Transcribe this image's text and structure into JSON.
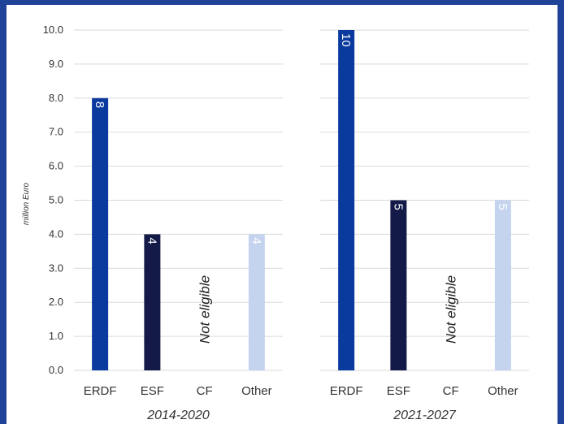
{
  "chart_data": {
    "type": "bar",
    "ylabel": "million Euro",
    "ylim": [
      0,
      10
    ],
    "yticks": [
      "0.0",
      "1.0",
      "2.0",
      "3.0",
      "4.0",
      "5.0",
      "6.0",
      "7.0",
      "8.0",
      "9.0",
      "10.0"
    ],
    "categories": [
      "ERDF",
      "ESF",
      "CF",
      "Other"
    ],
    "colors": [
      "#0a3a9e",
      "#141a48",
      "#ffffff",
      "#c5d4ee"
    ],
    "not_eligible_label": "Not eligible",
    "panels": [
      {
        "period": "2014-2020",
        "values": [
          8,
          4,
          null,
          4
        ],
        "labels": [
          "8",
          "4",
          "",
          "4"
        ]
      },
      {
        "period": "2021-2027",
        "values": [
          10,
          5,
          null,
          5
        ],
        "labels": [
          "10",
          "5",
          "",
          "5"
        ]
      }
    ]
  }
}
